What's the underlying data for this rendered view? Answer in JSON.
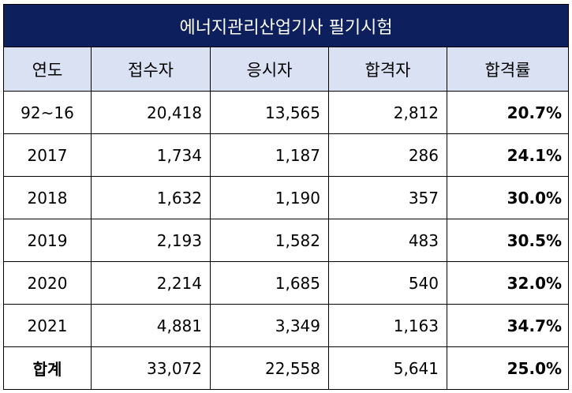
{
  "table": {
    "title": "에너지관리산업기사 필기시험",
    "headers": [
      "연도",
      "접수자",
      "응시자",
      "합격자",
      "합격률"
    ],
    "rows": [
      {
        "year": "92~16",
        "applicants": "20,418",
        "examinees": "13,565",
        "passers": "2,812",
        "rate": "20.7%"
      },
      {
        "year": "2017",
        "applicants": "1,734",
        "examinees": "1,187",
        "passers": "286",
        "rate": "24.1%"
      },
      {
        "year": "2018",
        "applicants": "1,632",
        "examinees": "1,190",
        "passers": "357",
        "rate": "30.0%"
      },
      {
        "year": "2019",
        "applicants": "2,193",
        "examinees": "1,582",
        "passers": "483",
        "rate": "30.5%"
      },
      {
        "year": "2020",
        "applicants": "2,214",
        "examinees": "1,685",
        "passers": "540",
        "rate": "32.0%"
      },
      {
        "year": "2021",
        "applicants": "4,881",
        "examinees": "3,349",
        "passers": "1,163",
        "rate": "34.7%"
      }
    ],
    "total": {
      "label": "합계",
      "applicants": "33,072",
      "examinees": "22,558",
      "passers": "5,641",
      "rate": "25.0%"
    }
  },
  "colors": {
    "title_bg": "#0d1f5c",
    "header_bg": "#d9e1f2"
  }
}
